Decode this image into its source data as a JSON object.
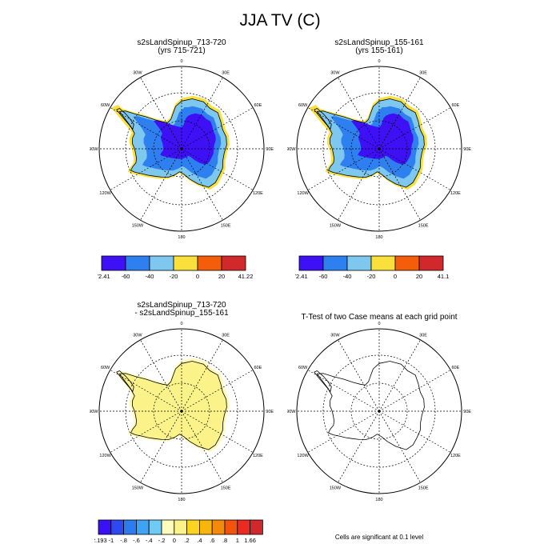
{
  "title": "JJA TV (C)",
  "chart_data": [
    {
      "type": "heatmap",
      "projection": "south-polar-stereographic",
      "title_lines": [
        "s2sLandSpinup_713-720",
        "(yrs 715-721)"
      ],
      "lon_labels": [
        "0",
        "30E",
        "60E",
        "90E",
        "120E",
        "150E",
        "180",
        "150W",
        "120W",
        "90W",
        "60W",
        "30W"
      ],
      "colorbar": {
        "colors": [
          "#3d10f5",
          "#2e7ff0",
          "#7ec7ef",
          "#f9e03a",
          "#f45e0b",
          "#d1282c"
        ],
        "labels": [
          "-72.41",
          "-60",
          "-40",
          "-20",
          "0",
          "20",
          "41.22"
        ]
      },
      "fill_regions": [
        {
          "level_color": "#f9e03a",
          "description": "coastal band"
        },
        {
          "level_color": "#7ec7ef",
          "description": "outer ice sheet"
        },
        {
          "level_color": "#2e7ff0",
          "description": "inner ice sheet"
        },
        {
          "level_color": "#3d10f5",
          "description": "east antarctic plateau"
        }
      ]
    },
    {
      "type": "heatmap",
      "projection": "south-polar-stereographic",
      "title_lines": [
        "s2sLandSpinup_155-161",
        "(yrs 155-161)"
      ],
      "lon_labels": [
        "0",
        "30E",
        "60E",
        "90E",
        "120E",
        "150E",
        "180",
        "150W",
        "120W",
        "90W",
        "60W",
        "30W"
      ],
      "colorbar": {
        "colors": [
          "#3d10f5",
          "#2e7ff0",
          "#7ec7ef",
          "#f9e03a",
          "#f45e0b",
          "#d1282c"
        ],
        "labels": [
          "-72.41",
          "-60",
          "-40",
          "-20",
          "0",
          "20",
          "41.1"
        ]
      }
    },
    {
      "type": "heatmap",
      "projection": "south-polar-stereographic",
      "title_lines": [
        "s2sLandSpinup_713-720",
        "- s2sLandSpinup_155-161"
      ],
      "lon_labels": [
        "0",
        "30E",
        "60E",
        "90E",
        "120E",
        "150E",
        "180",
        "150W",
        "120W",
        "90W",
        "60W",
        "30W"
      ],
      "colorbar": {
        "colors": [
          "#3a10f5",
          "#2f49f2",
          "#2c7cf0",
          "#3ea3f2",
          "#6fcaf5",
          "#fdfbbd",
          "#fbf28a",
          "#fbd41f",
          "#f8b60c",
          "#f48a0c",
          "#f2540e",
          "#ec2a1e",
          "#d1282c"
        ],
        "labels": [
          "-2.193",
          "-1",
          "-.8",
          "-.6",
          "-.4",
          "-.2",
          "0",
          ".2",
          ".4",
          ".6",
          ".8",
          "1",
          "1.66"
        ]
      }
    },
    {
      "type": "heatmap",
      "projection": "south-polar-stereographic",
      "title_lines": [
        "T-Test of two Case means at each grid point"
      ],
      "lon_labels": [
        "0",
        "30E",
        "60E",
        "90E",
        "120E",
        "150E",
        "180",
        "150W",
        "120W",
        "90W",
        "60W",
        "30W"
      ],
      "note": "Cells are significant at 0.1 level"
    }
  ]
}
